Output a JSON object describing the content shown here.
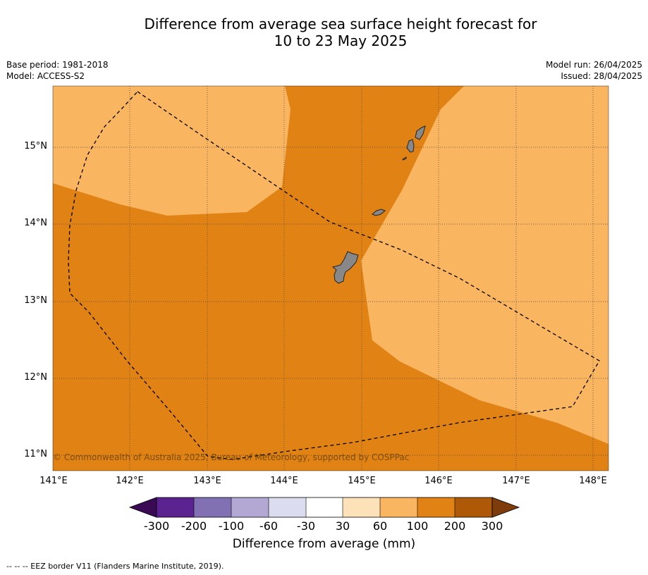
{
  "title_line1": "Difference from average sea surface height forecast for",
  "title_line2": "10 to 23 May 2025",
  "base_period": "Base period: 1981-2018",
  "model": "Model: ACCESS-S2",
  "model_run": "Model run: 26/04/2025",
  "issued": "Issued: 28/04/2025",
  "copyright": "© Commonwealth of Australia 2025, Bureau of Meteorology, supported by COSPPac",
  "lat_labels": [
    "15°N",
    "14°N",
    "13°N",
    "12°N",
    "11°N"
  ],
  "lon_labels": [
    "141°E",
    "142°E",
    "143°E",
    "144°E",
    "145°E",
    "146°E",
    "147°E",
    "148°E"
  ],
  "colorbar": {
    "title": "Difference from average (mm)",
    "ticks": [
      "-300",
      "-200",
      "-100",
      "-60",
      "-30",
      "30",
      "60",
      "100",
      "200",
      "300"
    ],
    "colors": [
      "#3b0a55",
      "#5b2390",
      "#8171b3",
      "#b2a8d3",
      "#dcdcef",
      "#ffffff",
      "#fde1b8",
      "#f9b55f",
      "#e18214",
      "#ad5908",
      "#7d3c0a"
    ]
  },
  "region_colors": {
    "60_100": "#f9b55f",
    "100_200": "#e18214",
    "land": "#888888"
  },
  "footer": "--  --  -- EEZ border V11 (Flanders Marine Institute, 2019)."
}
